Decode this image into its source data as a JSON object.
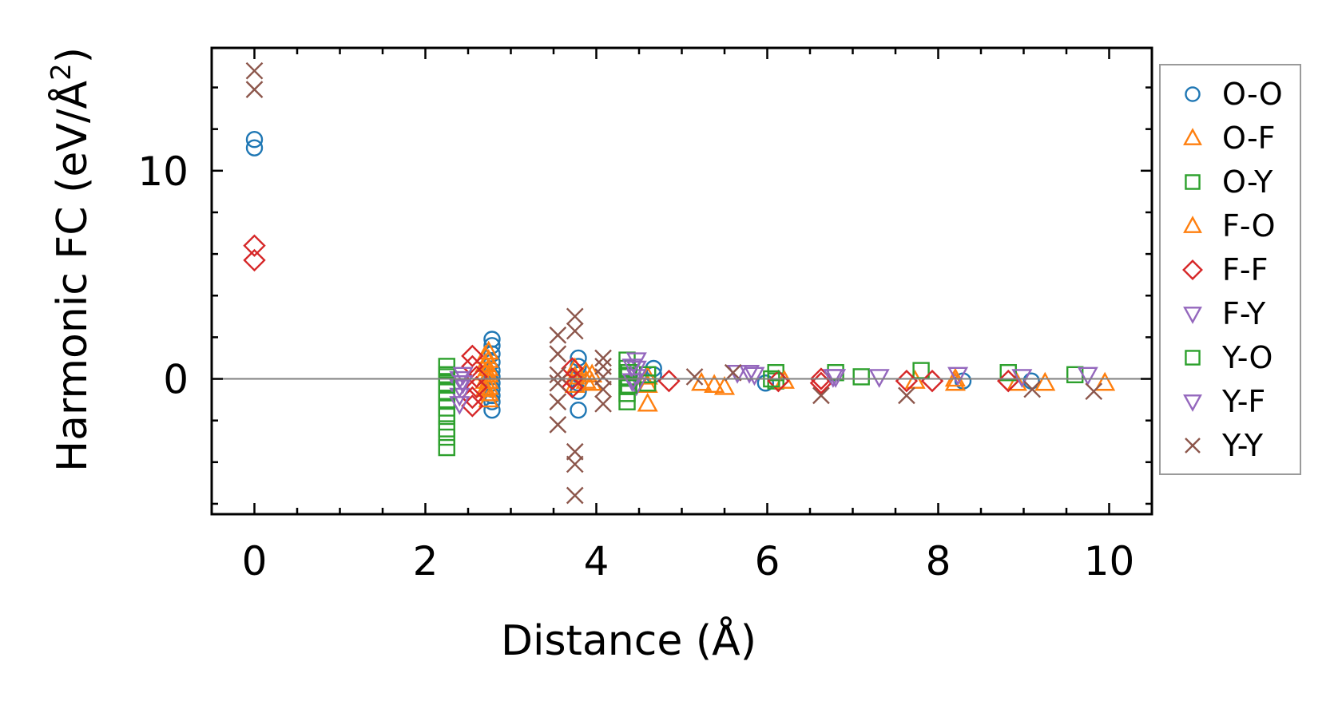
{
  "chart_data": {
    "type": "scatter",
    "title": "",
    "xlabel": "Distance (Å)",
    "ylabel_main": "Harmonic FC (eV/Å",
    "ylabel_sup": "2",
    "ylabel_end": ")",
    "xlim": [
      -0.5,
      10.5
    ],
    "ylim": [
      -6.5,
      15.9
    ],
    "xticks": [
      0,
      2,
      4,
      6,
      8,
      10
    ],
    "xtick_labels": [
      "0",
      "2",
      "4",
      "6",
      "8",
      "10"
    ],
    "yticks": [
      0,
      10
    ],
    "ytick_labels": [
      "0",
      "10"
    ],
    "zero_line": true,
    "grid": false,
    "legend_position": "right, outside",
    "series": [
      {
        "name": "O-O",
        "marker": "circle",
        "color": "#1f77b4",
        "points": [
          [
            0,
            11.5
          ],
          [
            0,
            11.1
          ],
          [
            2.78,
            1.9
          ],
          [
            2.78,
            1.6
          ],
          [
            2.78,
            1.2
          ],
          [
            2.78,
            0.8
          ],
          [
            2.78,
            0.4
          ],
          [
            2.78,
            0.1
          ],
          [
            2.78,
            -0.2
          ],
          [
            2.78,
            -0.5
          ],
          [
            2.78,
            -0.8
          ],
          [
            2.78,
            -1.1
          ],
          [
            2.78,
            -1.5
          ],
          [
            3.79,
            1.0
          ],
          [
            3.79,
            0.6
          ],
          [
            3.79,
            0.2
          ],
          [
            3.79,
            -0.2
          ],
          [
            3.79,
            -0.6
          ],
          [
            3.79,
            -1.5
          ],
          [
            4.67,
            0.5
          ],
          [
            4.67,
            0.2
          ],
          [
            5.98,
            -0.2
          ],
          [
            8.29,
            -0.1
          ],
          [
            9.09,
            -0.1
          ]
        ]
      },
      {
        "name": "O-F",
        "marker": "triangle-up",
        "color": "#ff7f0e",
        "points": [
          [
            2.74,
            1.3
          ],
          [
            2.74,
            0.9
          ],
          [
            2.74,
            0.5
          ],
          [
            2.74,
            0.2
          ],
          [
            2.74,
            -0.1
          ],
          [
            2.74,
            -0.4
          ],
          [
            2.74,
            -0.7
          ],
          [
            2.74,
            -1.0
          ],
          [
            3.75,
            0.5
          ],
          [
            3.75,
            0.1
          ],
          [
            3.75,
            -0.3
          ],
          [
            3.88,
            0.3
          ],
          [
            3.88,
            -0.1
          ],
          [
            4.6,
            0.1
          ],
          [
            4.6,
            -0.3
          ],
          [
            4.6,
            -1.2
          ],
          [
            5.23,
            -0.2
          ],
          [
            5.38,
            -0.3
          ],
          [
            5.5,
            -0.4
          ],
          [
            7.73,
            -0.1
          ],
          [
            8.2,
            -0.2
          ],
          [
            8.92,
            -0.2
          ],
          [
            9.25,
            -0.2
          ],
          [
            9.95,
            -0.2
          ]
        ]
      },
      {
        "name": "O-Y",
        "marker": "square",
        "color": "#2ca02c",
        "points": [
          [
            2.25,
            0.6
          ],
          [
            2.25,
            0.2
          ],
          [
            2.25,
            -0.2
          ],
          [
            2.25,
            -0.6
          ],
          [
            2.25,
            -1.0
          ],
          [
            2.25,
            -1.4
          ],
          [
            2.25,
            -1.8
          ],
          [
            2.25,
            -2.4
          ],
          [
            2.25,
            -2.8
          ],
          [
            2.25,
            -3.3
          ],
          [
            4.36,
            0.9
          ],
          [
            4.36,
            0.5
          ],
          [
            4.36,
            0.1
          ],
          [
            4.36,
            -0.3
          ],
          [
            4.36,
            -0.7
          ],
          [
            4.36,
            -1.1
          ],
          [
            4.6,
            0.2
          ],
          [
            4.6,
            -0.2
          ],
          [
            6.1,
            0.3
          ],
          [
            6.1,
            -0.1
          ],
          [
            6.8,
            0.3
          ],
          [
            7.1,
            0.1
          ],
          [
            7.8,
            0.4
          ],
          [
            8.82,
            0.3
          ],
          [
            9.6,
            0.2
          ]
        ]
      },
      {
        "name": "F-O",
        "marker": "triangle-up",
        "color": "#ff7f0e",
        "points": [
          [
            2.7,
            1.1
          ],
          [
            2.7,
            0.7
          ],
          [
            2.7,
            0.3
          ],
          [
            2.7,
            -0.1
          ],
          [
            2.7,
            -0.5
          ],
          [
            3.95,
            0.2
          ],
          [
            3.95,
            -0.2
          ],
          [
            6.2,
            -0.1
          ],
          [
            8.2,
            0.0
          ]
        ]
      },
      {
        "name": "F-F",
        "marker": "diamond",
        "color": "#d62728",
        "points": [
          [
            0,
            6.4
          ],
          [
            0,
            5.7
          ],
          [
            2.55,
            1.1
          ],
          [
            2.55,
            0.6
          ],
          [
            2.6,
            0.1
          ],
          [
            2.6,
            -0.4
          ],
          [
            2.55,
            -0.9
          ],
          [
            2.55,
            -1.3
          ],
          [
            3.72,
            0.5
          ],
          [
            3.72,
            0.0
          ],
          [
            3.72,
            -0.4
          ],
          [
            4.85,
            -0.1
          ],
          [
            6.13,
            -0.1
          ],
          [
            6.63,
            0.0
          ],
          [
            6.63,
            -0.2
          ],
          [
            7.63,
            -0.1
          ],
          [
            7.93,
            -0.1
          ],
          [
            8.82,
            -0.1
          ]
        ]
      },
      {
        "name": "F-Y",
        "marker": "triangle-down",
        "color": "#9467bd",
        "points": [
          [
            2.4,
            0.0
          ],
          [
            2.4,
            -0.4
          ],
          [
            2.4,
            -0.8
          ],
          [
            2.4,
            -1.2
          ],
          [
            4.47,
            0.9
          ],
          [
            4.47,
            0.5
          ],
          [
            4.47,
            0.1
          ],
          [
            4.47,
            -0.3
          ],
          [
            5.65,
            0.3
          ],
          [
            5.79,
            0.3
          ],
          [
            6.77,
            0.1
          ],
          [
            7.31,
            0.1
          ],
          [
            8.23,
            0.2
          ],
          [
            8.98,
            0.1
          ],
          [
            9.75,
            0.2
          ]
        ]
      },
      {
        "name": "Y-O",
        "marker": "square",
        "color": "#2ca02c",
        "points": [
          [
            2.25,
            0.1
          ],
          [
            2.25,
            -0.3
          ],
          [
            4.38,
            0.3
          ],
          [
            4.38,
            -0.3
          ],
          [
            6.05,
            0.0
          ]
        ]
      },
      {
        "name": "Y-F",
        "marker": "triangle-down",
        "color": "#9467bd",
        "points": [
          [
            2.44,
            0.2
          ],
          [
            2.44,
            -0.2
          ],
          [
            4.42,
            0.6
          ],
          [
            4.42,
            -0.1
          ],
          [
            5.85,
            0.2
          ],
          [
            6.8,
            0.1
          ]
        ]
      },
      {
        "name": "Y-Y",
        "marker": "x",
        "color": "#8c564b",
        "points": [
          [
            0,
            14.8
          ],
          [
            0,
            13.9
          ],
          [
            3.55,
            2.1
          ],
          [
            3.55,
            1.2
          ],
          [
            3.55,
            0.2
          ],
          [
            3.55,
            -0.2
          ],
          [
            3.55,
            -1.1
          ],
          [
            3.55,
            -2.2
          ],
          [
            3.75,
            3.0
          ],
          [
            3.75,
            2.3
          ],
          [
            3.75,
            -3.5
          ],
          [
            3.75,
            -4.1
          ],
          [
            3.75,
            -5.6
          ],
          [
            4.08,
            1.0
          ],
          [
            4.08,
            0.6
          ],
          [
            4.08,
            0.1
          ],
          [
            4.08,
            -0.5
          ],
          [
            4.08,
            -1.2
          ],
          [
            5.15,
            0.1
          ],
          [
            5.6,
            0.3
          ],
          [
            6.63,
            -0.8
          ],
          [
            7.63,
            -0.8
          ],
          [
            9.1,
            -0.5
          ],
          [
            9.82,
            -0.6
          ]
        ]
      }
    ]
  }
}
